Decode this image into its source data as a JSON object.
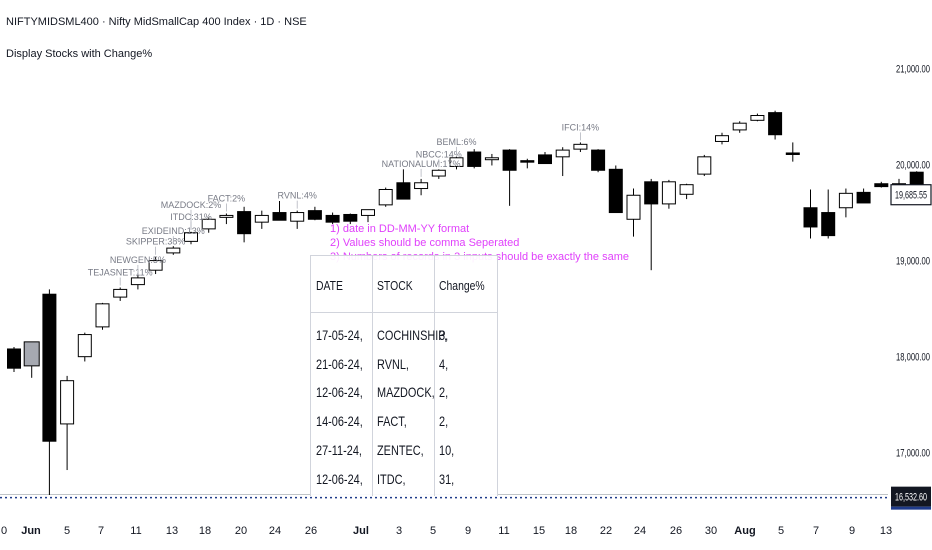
{
  "header": {
    "title": "NIFTYMIDSML400 · Nifty MidSmallCap 400 Index · 1D · NSE",
    "indicator": "Display Stocks with Change%"
  },
  "instructions": [
    "1) date in DD-MM-YY format",
    "2) Values should be comma Seperated",
    "3) Numbers of records in 3 inputs should be exactly the same"
  ],
  "table": {
    "headers": [
      "DATE",
      "STOCK",
      "Change%"
    ],
    "rows": [
      [
        "17-05-24,",
        "COCHINSHIP,",
        "3,"
      ],
      [
        "21-06-24,",
        "RVNL,",
        "4,"
      ],
      [
        "12-06-24,",
        "MAZDOCK,",
        "2,"
      ],
      [
        "14-06-24,",
        "FACT,",
        "2,"
      ],
      [
        "27-11-24,",
        "ZENTEC,",
        "10,"
      ],
      [
        "12-06-24,",
        "ITDC,",
        "31,"
      ]
    ]
  },
  "colors": {
    "up": "#ffffff",
    "down": "#000000",
    "wick": "#000000",
    "text": "#131722",
    "label": "#787b86",
    "accent": "#e040fb",
    "grid": "#e0e3eb"
  },
  "chart_data": {
    "type": "candlestick",
    "y_axis": {
      "ticks": [
        {
          "value": 21000,
          "label": "21,000.00"
        },
        {
          "value": 20000,
          "label": "20,000.00"
        },
        {
          "value": 19000,
          "label": "19,000.00"
        },
        {
          "value": 18000,
          "label": "18,000.00"
        },
        {
          "value": 17000,
          "label": "17,000.00"
        }
      ],
      "range": [
        16300,
        21400
      ]
    },
    "x_axis": {
      "ticks": [
        "0",
        "Jun",
        "5",
        "7",
        "11",
        "13",
        "18",
        "20",
        "24",
        "26",
        "Jul",
        "3",
        "5",
        "9",
        "11",
        "15",
        "18",
        "22",
        "24",
        "26",
        "30",
        "Aug",
        "5",
        "7",
        "9",
        "13"
      ],
      "bold": [
        "Jun",
        "Jul",
        "Aug"
      ]
    },
    "candles": [
      {
        "o": 18080,
        "h": 18100,
        "l": 17840,
        "c": 17880
      },
      {
        "o": 18050,
        "h": 18080,
        "l": 17780,
        "c": 17980
      },
      {
        "o": 18650,
        "h": 18700,
        "l": 16560,
        "c": 17120
      },
      {
        "o": 17300,
        "h": 17800,
        "l": 16820,
        "c": 17750
      },
      {
        "o": 18000,
        "h": 18250,
        "l": 17950,
        "c": 18230
      },
      {
        "o": 18310,
        "h": 18560,
        "l": 18280,
        "c": 18550
      },
      {
        "o": 18620,
        "h": 18720,
        "l": 18580,
        "c": 18700
      },
      {
        "o": 18750,
        "h": 18850,
        "l": 18700,
        "c": 18820
      },
      {
        "o": 18900,
        "h": 19040,
        "l": 18860,
        "c": 19000
      },
      {
        "o": 19080,
        "h": 19150,
        "l": 19060,
        "c": 19130
      },
      {
        "o": 19200,
        "h": 19300,
        "l": 19170,
        "c": 19290
      },
      {
        "o": 19330,
        "h": 19450,
        "l": 19290,
        "c": 19430
      },
      {
        "o": 19450,
        "h": 19490,
        "l": 19380,
        "c": 19470
      },
      {
        "o": 19510,
        "h": 19560,
        "l": 19190,
        "c": 19280
      },
      {
        "o": 19400,
        "h": 19520,
        "l": 19330,
        "c": 19470
      },
      {
        "o": 19500,
        "h": 19620,
        "l": 19430,
        "c": 19420
      },
      {
        "o": 19410,
        "h": 19520,
        "l": 19330,
        "c": 19500
      },
      {
        "o": 19520,
        "h": 19560,
        "l": 19420,
        "c": 19430
      },
      {
        "o": 19470,
        "h": 19500,
        "l": 19380,
        "c": 19400
      },
      {
        "o": 19480,
        "h": 19490,
        "l": 19380,
        "c": 19410
      },
      {
        "o": 19470,
        "h": 19530,
        "l": 19400,
        "c": 19530
      },
      {
        "o": 19580,
        "h": 19760,
        "l": 19560,
        "c": 19740
      },
      {
        "o": 19810,
        "h": 19950,
        "l": 19640,
        "c": 19640
      },
      {
        "o": 19750,
        "h": 19850,
        "l": 19680,
        "c": 19810
      },
      {
        "o": 19880,
        "h": 19950,
        "l": 19850,
        "c": 19940
      },
      {
        "o": 19980,
        "h": 20080,
        "l": 19950,
        "c": 20070
      },
      {
        "o": 20130,
        "h": 20160,
        "l": 19960,
        "c": 19980
      },
      {
        "o": 20050,
        "h": 20110,
        "l": 19990,
        "c": 20070
      },
      {
        "o": 20150,
        "h": 20160,
        "l": 19570,
        "c": 19940
      },
      {
        "o": 20040,
        "h": 20060,
        "l": 19960,
        "c": 20030
      },
      {
        "o": 20100,
        "h": 20130,
        "l": 20020,
        "c": 20010
      },
      {
        "o": 20080,
        "h": 20180,
        "l": 19880,
        "c": 20150
      },
      {
        "o": 20160,
        "h": 20230,
        "l": 20130,
        "c": 20210
      },
      {
        "o": 20150,
        "h": 20160,
        "l": 19920,
        "c": 19940
      },
      {
        "o": 19950,
        "h": 19990,
        "l": 19500,
        "c": 19500
      },
      {
        "o": 19430,
        "h": 19750,
        "l": 19250,
        "c": 19680
      },
      {
        "o": 19820,
        "h": 19850,
        "l": 18900,
        "c": 19590
      },
      {
        "o": 19590,
        "h": 19840,
        "l": 19540,
        "c": 19820
      },
      {
        "o": 19690,
        "h": 19800,
        "l": 19640,
        "c": 19790
      },
      {
        "o": 19900,
        "h": 20100,
        "l": 19880,
        "c": 20080
      },
      {
        "o": 20240,
        "h": 20330,
        "l": 20210,
        "c": 20300
      },
      {
        "o": 20360,
        "h": 20450,
        "l": 20330,
        "c": 20430
      },
      {
        "o": 20460,
        "h": 20530,
        "l": 20450,
        "c": 20510
      },
      {
        "o": 20540,
        "h": 20560,
        "l": 20260,
        "c": 20310
      },
      {
        "o": 20120,
        "h": 20230,
        "l": 20030,
        "c": 20110
      },
      {
        "o": 19550,
        "h": 19740,
        "l": 19230,
        "c": 19350
      },
      {
        "o": 19500,
        "h": 19740,
        "l": 19230,
        "c": 19260
      },
      {
        "o": 19550,
        "h": 19750,
        "l": 19450,
        "c": 19700
      },
      {
        "o": 19710,
        "h": 19750,
        "l": 19620,
        "c": 19600
      },
      {
        "o": 19800,
        "h": 19820,
        "l": 19760,
        "c": 19770
      },
      {
        "o": 19800,
        "h": 19850,
        "l": 19660,
        "c": 19730
      },
      {
        "o": 19920,
        "h": 19930,
        "l": 19590,
        "c": 19650
      }
    ],
    "stock_labels": [
      {
        "text": "TEJASNET:11%",
        "candle": 6
      },
      {
        "text": "NEWGEN:5%",
        "candle": 7
      },
      {
        "text": "SKIPPER:38%",
        "candle": 8
      },
      {
        "text": "EXIDEIND:13%",
        "candle": 9
      },
      {
        "text": "ITDC:31%",
        "candle": 10
      },
      {
        "text": "MAZDOCK:2%",
        "candle": 10
      },
      {
        "text": "FACT:2%",
        "candle": 12
      },
      {
        "text": "RVNL:4%",
        "candle": 16
      },
      {
        "text": "NATIONALUM:17%",
        "candle": 23
      },
      {
        "text": "NBCC:14%",
        "candle": 24
      },
      {
        "text": "BEML:6%",
        "candle": 25
      },
      {
        "text": "IFCI:14%",
        "candle": 32
      }
    ],
    "last_price": {
      "value": 19685.55,
      "label": "19,685.55"
    },
    "low_marker": {
      "value": 16532.6,
      "label": "16,532.60"
    }
  }
}
